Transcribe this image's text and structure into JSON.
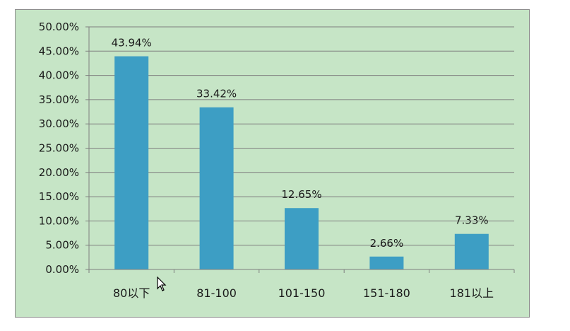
{
  "chart_data": {
    "type": "bar",
    "categories": [
      "80以下",
      "81-100",
      "101-150",
      "151-180",
      "181以上"
    ],
    "values": [
      43.94,
      33.42,
      12.65,
      2.66,
      7.33
    ],
    "data_labels": [
      "43.94%",
      "33.42%",
      "12.65%",
      "2.66%",
      "7.33%"
    ],
    "title": "",
    "xlabel": "",
    "ylabel": "",
    "ylim": [
      0,
      50
    ],
    "y_ticks": [
      0,
      5,
      10,
      15,
      20,
      25,
      30,
      35,
      40,
      45,
      50
    ],
    "y_tick_labels": [
      "0.00%",
      "5.00%",
      "10.00%",
      "15.00%",
      "20.00%",
      "25.00%",
      "30.00%",
      "35.00%",
      "40.00%",
      "45.00%",
      "50.00%"
    ],
    "grid": true,
    "legend": "none",
    "colors": {
      "bar": "#3d9ec4",
      "background": "#c6e5c6",
      "grid": "#7f7f7f"
    }
  }
}
